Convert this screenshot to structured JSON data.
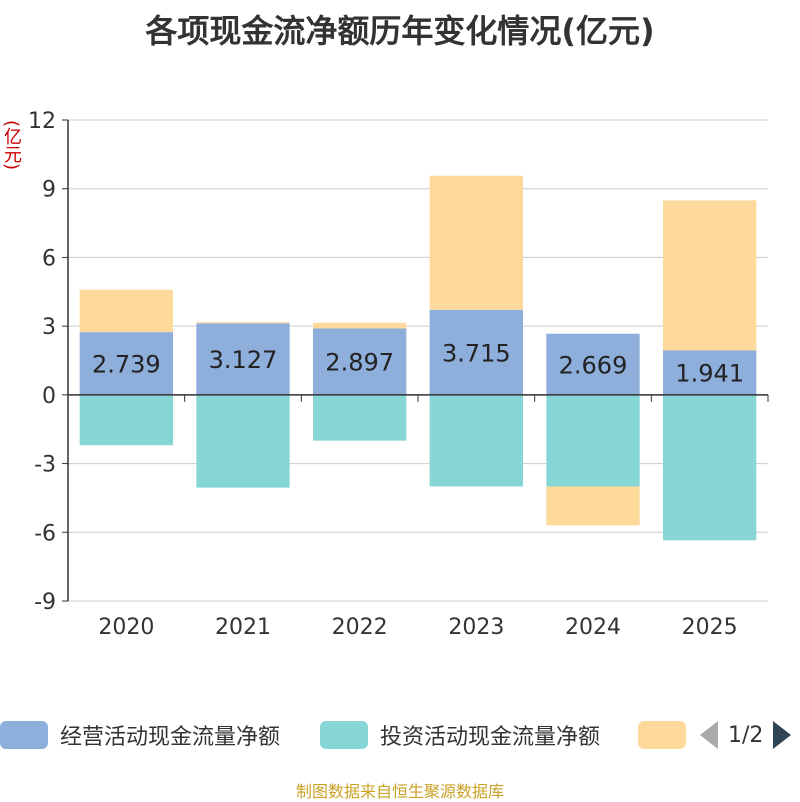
{
  "chart_data": {
    "type": "bar",
    "stacked": true,
    "title": "各项现金流净额历年变化情况(亿元)",
    "ylabel": "(亿元)",
    "xlabel": "",
    "ylim": [
      -9,
      12
    ],
    "yticks": [
      12,
      9,
      6,
      3,
      0,
      -3,
      -6,
      -9
    ],
    "categories": [
      "2020",
      "2021",
      "2022",
      "2023",
      "2024",
      "2025"
    ],
    "series": [
      {
        "name": "经营活动现金流量净额",
        "color": "#8eaedb",
        "values": [
          2.739,
          3.127,
          2.897,
          3.715,
          2.669,
          1.941
        ],
        "labels": [
          "2.739",
          "3.127",
          "2.897",
          "3.715",
          "2.669",
          "1.941"
        ]
      },
      {
        "name": "投资活动现金流量净额",
        "color": "#87d6d6",
        "values": [
          -2.2,
          -4.05,
          -2.0,
          -4.0,
          -4.0,
          -6.35
        ]
      },
      {
        "name": "",
        "color": "#fdd99b",
        "values": [
          1.85,
          0.05,
          0.25,
          5.85,
          -1.7,
          6.55
        ]
      }
    ]
  },
  "legend": {
    "items": [
      "经营活动现金流量净额",
      "投资活动现金流量净额",
      ""
    ],
    "page": "1/2"
  },
  "source": "制图数据来自恒生聚源数据库"
}
